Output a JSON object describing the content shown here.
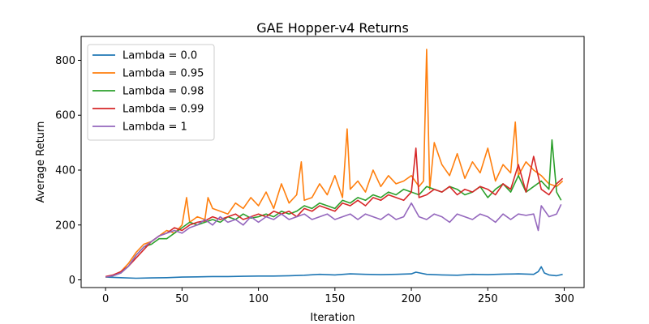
{
  "chart_data": {
    "type": "line",
    "title": "GAE Hopper-v4 Returns",
    "xlabel": "Iteration",
    "ylabel": "Average Return",
    "xlim": [
      -16,
      313
    ],
    "ylim": [
      -28,
      887
    ],
    "xticks": [
      0,
      50,
      100,
      150,
      200,
      250,
      300
    ],
    "yticks": [
      0,
      200,
      400,
      600,
      800
    ],
    "grid": false,
    "legend_position": "top-left",
    "series": [
      {
        "name": "Lambda = 0.0",
        "color": "#1f77b4",
        "x": [
          0,
          10,
          20,
          30,
          40,
          50,
          60,
          70,
          80,
          90,
          100,
          110,
          120,
          130,
          140,
          150,
          160,
          170,
          180,
          190,
          200,
          203,
          210,
          220,
          230,
          240,
          250,
          260,
          270,
          280,
          283,
          285,
          287,
          290,
          295,
          299
        ],
        "y": [
          10,
          8,
          6,
          7,
          8,
          10,
          11,
          12,
          12,
          13,
          14,
          14,
          15,
          17,
          20,
          18,
          22,
          20,
          19,
          20,
          22,
          28,
          20,
          18,
          17,
          20,
          19,
          21,
          22,
          20,
          30,
          48,
          25,
          18,
          15,
          20
        ]
      },
      {
        "name": "Lambda = 0.95",
        "color": "#ff7f0e",
        "x": [
          0,
          5,
          10,
          15,
          20,
          25,
          30,
          35,
          40,
          45,
          50,
          53,
          55,
          60,
          65,
          67,
          70,
          75,
          80,
          85,
          90,
          95,
          100,
          105,
          110,
          115,
          120,
          125,
          128,
          130,
          135,
          140,
          145,
          150,
          155,
          158,
          160,
          165,
          170,
          175,
          180,
          185,
          190,
          195,
          200,
          205,
          208,
          210,
          212,
          215,
          220,
          225,
          230,
          235,
          240,
          245,
          250,
          255,
          260,
          265,
          268,
          270,
          275,
          280,
          285,
          290,
          295,
          299
        ],
        "y": [
          10,
          15,
          30,
          60,
          100,
          130,
          140,
          160,
          180,
          170,
          200,
          300,
          210,
          230,
          220,
          300,
          260,
          250,
          240,
          280,
          260,
          300,
          270,
          320,
          260,
          350,
          280,
          310,
          430,
          290,
          300,
          350,
          310,
          380,
          300,
          550,
          330,
          360,
          320,
          400,
          340,
          380,
          350,
          360,
          380,
          340,
          360,
          840,
          330,
          500,
          420,
          380,
          460,
          370,
          430,
          390,
          480,
          360,
          420,
          390,
          575,
          380,
          430,
          400,
          380,
          350,
          340,
          360
        ]
      },
      {
        "name": "Lambda = 0.98",
        "color": "#2ca02c",
        "x": [
          0,
          5,
          10,
          15,
          20,
          25,
          30,
          35,
          40,
          45,
          50,
          55,
          60,
          65,
          70,
          75,
          80,
          85,
          90,
          95,
          100,
          105,
          110,
          115,
          120,
          125,
          130,
          135,
          140,
          145,
          150,
          155,
          160,
          165,
          170,
          175,
          180,
          185,
          190,
          195,
          200,
          205,
          210,
          215,
          220,
          225,
          230,
          235,
          240,
          245,
          250,
          255,
          260,
          265,
          270,
          275,
          280,
          285,
          290,
          292,
          295,
          298
        ],
        "y": [
          10,
          15,
          25,
          50,
          90,
          120,
          130,
          150,
          150,
          170,
          190,
          210,
          200,
          210,
          220,
          210,
          230,
          220,
          240,
          225,
          230,
          240,
          230,
          250,
          240,
          250,
          270,
          260,
          280,
          270,
          260,
          290,
          280,
          300,
          290,
          310,
          300,
          320,
          310,
          330,
          320,
          310,
          340,
          330,
          320,
          340,
          330,
          310,
          320,
          340,
          300,
          330,
          350,
          320,
          380,
          320,
          340,
          360,
          330,
          510,
          320,
          290
        ]
      },
      {
        "name": "Lambda = 0.99",
        "color": "#d62728",
        "x": [
          0,
          5,
          10,
          15,
          20,
          25,
          30,
          35,
          40,
          45,
          50,
          55,
          60,
          65,
          70,
          75,
          80,
          85,
          90,
          95,
          100,
          105,
          110,
          115,
          120,
          125,
          130,
          135,
          140,
          145,
          150,
          155,
          160,
          165,
          170,
          175,
          180,
          185,
          190,
          195,
          200,
          203,
          205,
          210,
          215,
          220,
          225,
          230,
          235,
          240,
          245,
          250,
          255,
          260,
          265,
          270,
          275,
          280,
          285,
          290,
          295,
          299
        ],
        "y": [
          12,
          18,
          30,
          50,
          80,
          110,
          140,
          160,
          170,
          190,
          180,
          200,
          210,
          215,
          230,
          220,
          230,
          240,
          220,
          230,
          240,
          230,
          250,
          240,
          250,
          230,
          260,
          250,
          270,
          260,
          250,
          280,
          270,
          290,
          270,
          300,
          290,
          310,
          300,
          290,
          320,
          480,
          300,
          310,
          330,
          320,
          340,
          310,
          330,
          320,
          340,
          330,
          310,
          350,
          330,
          420,
          320,
          450,
          330,
          310,
          350,
          370
        ]
      },
      {
        "name": "Lambda = 1",
        "color": "#9467bd",
        "x": [
          0,
          5,
          10,
          15,
          20,
          25,
          30,
          35,
          40,
          45,
          50,
          55,
          60,
          65,
          70,
          75,
          80,
          85,
          90,
          95,
          100,
          105,
          110,
          115,
          120,
          125,
          130,
          135,
          140,
          145,
          150,
          155,
          160,
          165,
          170,
          175,
          180,
          185,
          190,
          195,
          200,
          205,
          210,
          215,
          220,
          225,
          230,
          235,
          240,
          245,
          250,
          255,
          260,
          265,
          270,
          275,
          280,
          283,
          285,
          290,
          295,
          298
        ],
        "y": [
          10,
          15,
          25,
          50,
          90,
          120,
          140,
          160,
          170,
          180,
          170,
          190,
          200,
          220,
          200,
          230,
          210,
          220,
          200,
          230,
          210,
          230,
          220,
          240,
          220,
          230,
          240,
          220,
          230,
          240,
          220,
          230,
          240,
          220,
          240,
          230,
          220,
          240,
          220,
          230,
          280,
          230,
          220,
          240,
          230,
          210,
          240,
          230,
          220,
          240,
          230,
          210,
          240,
          220,
          240,
          235,
          240,
          180,
          270,
          230,
          240,
          275
        ]
      }
    ]
  }
}
